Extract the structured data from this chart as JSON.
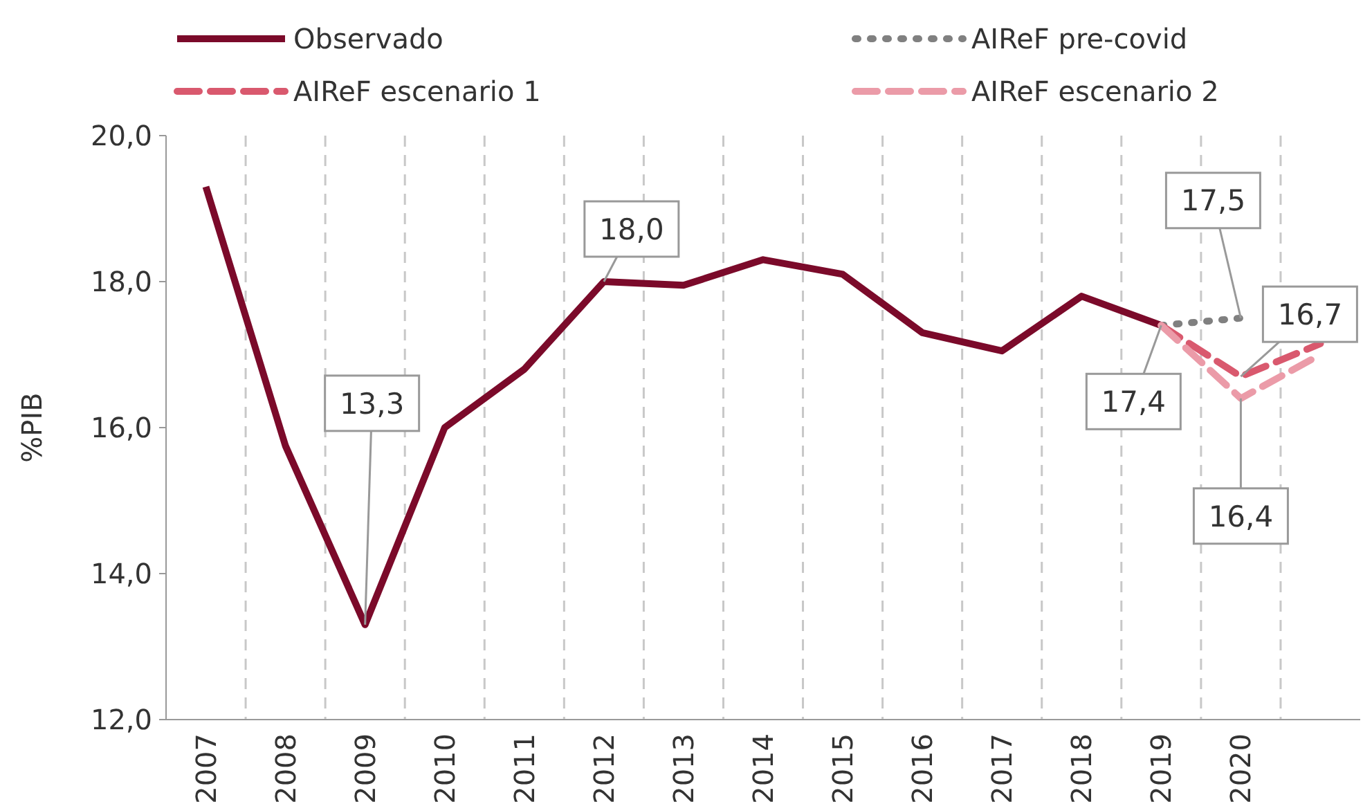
{
  "chart_data": {
    "type": "line",
    "categories": [
      "2007",
      "2008",
      "2009",
      "2010",
      "2011",
      "2012",
      "2013",
      "2014",
      "2015",
      "2016",
      "2017",
      "2018",
      "2019",
      "2020",
      null
    ],
    "ylabel": "%PIB",
    "ylim": [
      12,
      20
    ],
    "yticks": [
      {
        "value": 12,
        "label": "12,0"
      },
      {
        "value": 14,
        "label": "14,0"
      },
      {
        "value": 16,
        "label": "16,0"
      },
      {
        "value": 18,
        "label": "18,0"
      },
      {
        "value": 20,
        "label": "20,0"
      }
    ],
    "grid": "x",
    "legend": "top",
    "series": [
      {
        "name": "Observado",
        "color": "#7b0a2a",
        "line_style": "solid",
        "values": [
          19.3,
          15.75,
          13.3,
          16.0,
          16.8,
          18.0,
          17.95,
          18.3,
          18.1,
          17.3,
          17.05,
          17.8,
          17.4,
          null,
          null
        ]
      },
      {
        "name": "AIReF pre-covid",
        "color": "#808080",
        "line_style": "dotted",
        "values": [
          null,
          null,
          null,
          null,
          null,
          null,
          null,
          null,
          null,
          null,
          null,
          null,
          17.4,
          17.5,
          null
        ]
      },
      {
        "name": "AIReF escenario 1",
        "color": "#d9596e",
        "line_style": "dashed",
        "values": [
          null,
          null,
          null,
          null,
          null,
          null,
          null,
          null,
          null,
          null,
          null,
          null,
          17.4,
          16.7,
          17.15
        ]
      },
      {
        "name": "AIReF escenario 2",
        "color": "#eb9ba8",
        "line_style": "dashed",
        "values": [
          null,
          null,
          null,
          null,
          null,
          null,
          null,
          null,
          null,
          null,
          null,
          null,
          17.4,
          16.4,
          17.0
        ]
      }
    ],
    "annotations": [
      {
        "text": "13,3",
        "x": "2009",
        "y": 13.3
      },
      {
        "text": "18,0",
        "x": "2012",
        "y": 18.0
      },
      {
        "text": "17,4",
        "x": "2019",
        "y": 17.4
      },
      {
        "text": "17,5",
        "x": "2020",
        "y": 17.5
      },
      {
        "text": "16,7",
        "x": "2020",
        "y": 16.7
      },
      {
        "text": "16,4",
        "x": "2020",
        "y": 16.4
      }
    ]
  }
}
